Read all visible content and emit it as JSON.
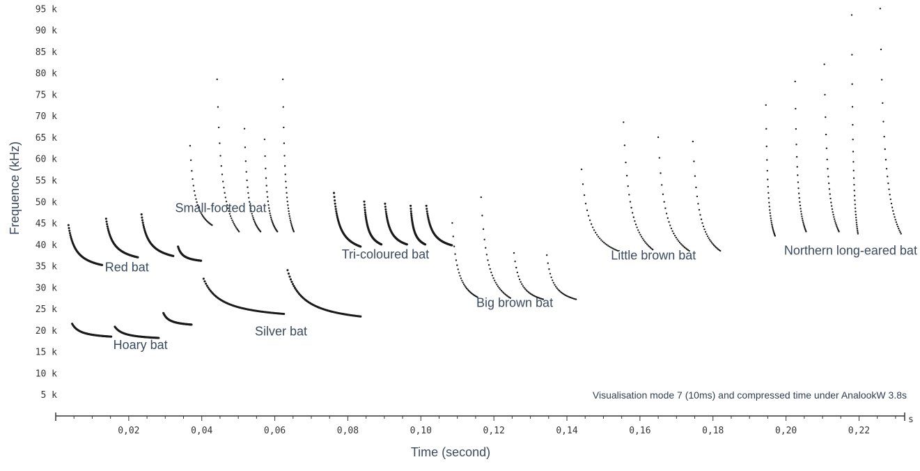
{
  "chart_data": {
    "type": "scatter",
    "title": "",
    "xlabel": "Time (second)",
    "ylabel": "Frequence (kHz)",
    "xlim": [
      0.0,
      0.2325
    ],
    "ylim": [
      0,
      97
    ],
    "x_tick_labels": [
      {
        "value": 0.02,
        "label": "0,02"
      },
      {
        "value": 0.04,
        "label": "0,04"
      },
      {
        "value": 0.06,
        "label": "0,06"
      },
      {
        "value": 0.08,
        "label": "0,08"
      },
      {
        "value": 0.1,
        "label": "0,10"
      },
      {
        "value": 0.12,
        "label": "0,12"
      },
      {
        "value": 0.14,
        "label": "0,14"
      },
      {
        "value": 0.16,
        "label": "0,16"
      },
      {
        "value": 0.18,
        "label": "0,18"
      },
      {
        "value": 0.2,
        "label": "0,20"
      },
      {
        "value": 0.22,
        "label": "0,22"
      }
    ],
    "x_axis_end_label": "s",
    "y_tick_labels": [
      {
        "value": 5,
        "label": "5 k"
      },
      {
        "value": 10,
        "label": "10 k"
      },
      {
        "value": 15,
        "label": "15 k"
      },
      {
        "value": 20,
        "label": "20 k"
      },
      {
        "value": 25,
        "label": "25 k"
      },
      {
        "value": 30,
        "label": "30 k"
      },
      {
        "value": 35,
        "label": "35 k"
      },
      {
        "value": 40,
        "label": "40 k"
      },
      {
        "value": 45,
        "label": "45 k"
      },
      {
        "value": 50,
        "label": "50 k"
      },
      {
        "value": 55,
        "label": "55 k"
      },
      {
        "value": 60,
        "label": "60 k"
      },
      {
        "value": 65,
        "label": "65 k"
      },
      {
        "value": 70,
        "label": "70 k"
      },
      {
        "value": 75,
        "label": "75 k"
      },
      {
        "value": 80,
        "label": "80 k"
      },
      {
        "value": 85,
        "label": "85 k"
      },
      {
        "value": 90,
        "label": "90 k"
      },
      {
        "value": 95,
        "label": "95 k"
      }
    ],
    "annotation": "Visualisation mode 7 (10ms) and compressed time under AnalookW 3.8s",
    "species": [
      {
        "name": "Red bat",
        "label_at": [
          0.0195,
          33.7
        ],
        "calls": [
          {
            "t_start": 0.0035,
            "f_start": 44.5,
            "t_end": 0.0127,
            "f_end": 35.2,
            "style": "solid"
          },
          {
            "t_start": 0.0138,
            "f_start": 46.0,
            "t_end": 0.0225,
            "f_start_end": 0,
            "f_end": 37.0,
            "style": "solid"
          },
          {
            "t_start": 0.0235,
            "f_start": 47.0,
            "t_end": 0.0322,
            "f_end": 37.3,
            "style": "solid"
          },
          {
            "t_start": 0.0335,
            "f_start": 39.5,
            "t_end": 0.0398,
            "f_end": 36.2,
            "style": "solid"
          }
        ]
      },
      {
        "name": "Hoary bat",
        "label_at": [
          0.0232,
          15.6
        ],
        "calls": [
          {
            "t_start": 0.0045,
            "f_start": 21.5,
            "t_end": 0.0152,
            "f_end": 18.5,
            "style": "solid"
          },
          {
            "t_start": 0.0162,
            "f_start": 20.8,
            "t_end": 0.0282,
            "f_end": 18.2,
            "style": "solid"
          },
          {
            "t_start": 0.0295,
            "f_start": 24.0,
            "t_end": 0.0372,
            "f_end": 21.3,
            "style": "solid"
          }
        ]
      },
      {
        "name": "Small-footed bat",
        "label_at": [
          0.0452,
          47.5
        ],
        "calls": [
          {
            "t_start": 0.0368,
            "f_start": 63.0,
            "t_end": 0.0428,
            "f_end": 44.5,
            "style": "dotted"
          },
          {
            "t_start": 0.0442,
            "f_start": 78.5,
            "t_end": 0.0502,
            "f_end": 43.0,
            "style": "dotted"
          },
          {
            "t_start": 0.0517,
            "f_start": 67.0,
            "t_end": 0.0561,
            "f_end": 43.0,
            "style": "dotted"
          },
          {
            "t_start": 0.0572,
            "f_start": 64.5,
            "t_end": 0.0607,
            "f_end": 43.0,
            "style": "dotted"
          },
          {
            "t_start": 0.0622,
            "f_start": 78.5,
            "t_end": 0.0652,
            "f_end": 43.0,
            "style": "dotted"
          }
        ]
      },
      {
        "name": "Silver bat",
        "label_at": [
          0.0617,
          18.8
        ],
        "calls": [
          {
            "t_start": 0.0405,
            "f_start": 32.0,
            "t_end": 0.0625,
            "f_end": 23.8,
            "style": "solid"
          },
          {
            "t_start": 0.0635,
            "f_start": 34.0,
            "t_end": 0.0835,
            "f_end": 23.2,
            "style": "solid"
          }
        ]
      },
      {
        "name": "Tri-coloured bat",
        "label_at": [
          0.0903,
          36.7
        ],
        "calls": [
          {
            "t_start": 0.0762,
            "f_start": 52.0,
            "t_end": 0.0835,
            "f_end": 39.5,
            "style": "solid"
          },
          {
            "t_start": 0.0845,
            "f_start": 50.0,
            "t_end": 0.0892,
            "f_end": 40.0,
            "style": "solid"
          },
          {
            "t_start": 0.0902,
            "f_start": 49.5,
            "t_end": 0.0962,
            "f_end": 40.0,
            "style": "solid"
          },
          {
            "t_start": 0.0972,
            "f_start": 49.0,
            "t_end": 0.1012,
            "f_end": 40.0,
            "style": "solid"
          },
          {
            "t_start": 0.1015,
            "f_start": 49.0,
            "t_end": 0.1085,
            "f_end": 39.8,
            "style": "solid"
          }
        ]
      },
      {
        "name": "Big brown bat",
        "label_at": [
          0.1257,
          25.4
        ],
        "calls": [
          {
            "t_start": 0.1086,
            "f_start": 45.0,
            "t_end": 0.1155,
            "f_end": 27.7,
            "style": "dotted"
          },
          {
            "t_start": 0.1165,
            "f_start": 51.0,
            "t_end": 0.1245,
            "f_end": 27.5,
            "style": "dotted"
          },
          {
            "t_start": 0.1255,
            "f_start": 38.0,
            "t_end": 0.1335,
            "f_end": 27.2,
            "style": "dotted"
          },
          {
            "t_start": 0.1345,
            "f_start": 37.5,
            "t_end": 0.1425,
            "f_end": 27.2,
            "style": "dotted"
          }
        ]
      },
      {
        "name": "Little brown bat",
        "label_at": [
          0.1637,
          36.5
        ],
        "calls": [
          {
            "t_start": 0.144,
            "f_start": 57.5,
            "t_end": 0.154,
            "f_end": 38.5,
            "style": "dotted"
          },
          {
            "t_start": 0.1555,
            "f_start": 68.5,
            "t_end": 0.1635,
            "f_end": 38.8,
            "style": "dotted"
          },
          {
            "t_start": 0.165,
            "f_start": 65.0,
            "t_end": 0.1735,
            "f_end": 38.5,
            "style": "dotted"
          },
          {
            "t_start": 0.1745,
            "f_start": 64.0,
            "t_end": 0.182,
            "f_end": 38.5,
            "style": "dotted"
          }
        ]
      },
      {
        "name": "Northern long-eared bat",
        "label_at": [
          0.2177,
          37.6
        ],
        "calls": [
          {
            "t_start": 0.1945,
            "f_start": 72.5,
            "t_end": 0.197,
            "f_end": 42.0,
            "style": "dotted"
          },
          {
            "t_start": 0.2025,
            "f_start": 78.0,
            "t_end": 0.2055,
            "f_end": 43.0,
            "style": "dotted"
          },
          {
            "t_start": 0.2105,
            "f_start": 82.0,
            "t_end": 0.2145,
            "f_end": 43.0,
            "style": "dotted"
          },
          {
            "t_start": 0.218,
            "f_start": 93.5,
            "t_end": 0.2197,
            "f_end": 42.5,
            "style": "dotted"
          },
          {
            "t_start": 0.2258,
            "f_start": 95.0,
            "t_end": 0.2315,
            "f_end": 42.5,
            "style": "dotted"
          }
        ]
      }
    ],
    "colors": {
      "trace": "#1a1a1a",
      "label": "#3b4a5e",
      "axis": "#333333"
    },
    "grid": false
  }
}
